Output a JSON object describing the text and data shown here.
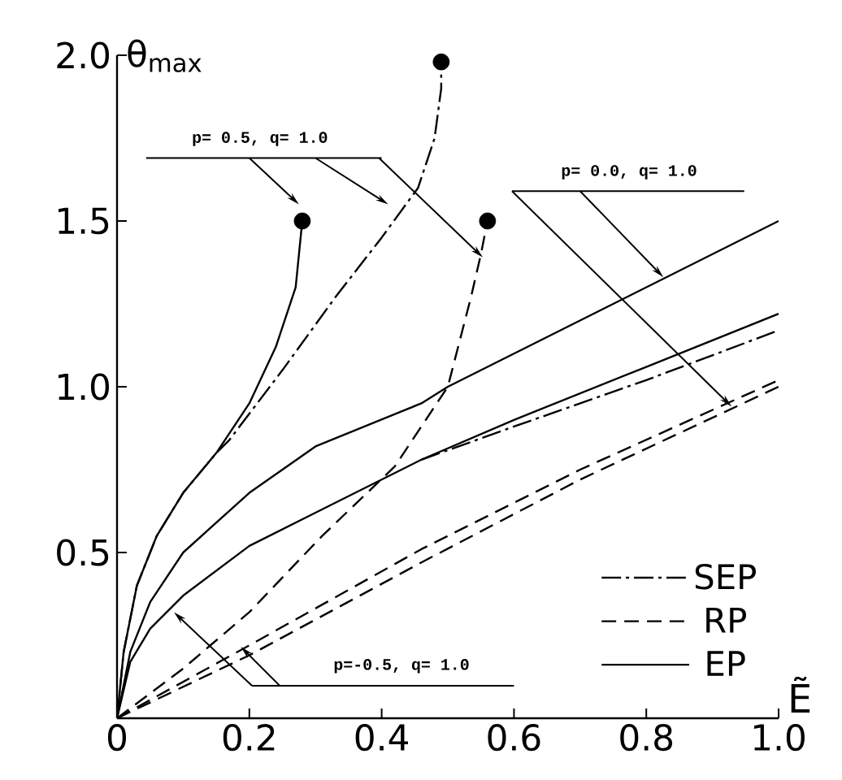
{
  "chart_data": {
    "type": "line",
    "xlabel": "Ẽ",
    "ylabel": "θ$_{max}$",
    "xlim": [
      0,
      1
    ],
    "ylim": [
      0,
      2
    ],
    "xticks": [
      {
        "value": 0,
        "label": "0"
      },
      0.2,
      0.4,
      0.6,
      0.8,
      {
        "value": 1,
        "label": "1.0"
      }
    ],
    "yticks": [
      0.5,
      {
        "value": 1,
        "label": "1.0"
      },
      1.5,
      {
        "value": 2,
        "label": "2.0"
      }
    ],
    "legend": "bottom right",
    "grid": false,
    "annotations": [
      "p= 0.5, q= 1.0",
      "p= 0.0, q= 1.0",
      "p=-0.5, q= 1.0"
    ],
    "series": [
      {
        "name": "SEP",
        "color": "#000000",
        "line_style": "dashdot",
        "x": [
          0,
          0.01,
          0.03,
          0.06,
          0.1,
          0.15,
          0.17,
          0.25,
          0.33,
          0.4,
          0.455,
          0.48,
          0.49,
          0.49
        ],
        "values": [
          0,
          0.2,
          0.4,
          0.55,
          0.68,
          0.8,
          0.84,
          1.05,
          1.27,
          1.45,
          1.6,
          1.75,
          1.9,
          1.98
        ]
      },
      {
        "name": "RP",
        "color": "#000000",
        "line_style": "dashed",
        "x": [
          0,
          0.1,
          0.2,
          0.31,
          0.42,
          0.5,
          0.535,
          0.55,
          0.56
        ],
        "values": [
          0,
          0.15,
          0.32,
          0.55,
          0.76,
          1.0,
          1.27,
          1.4,
          1.5
        ]
      },
      {
        "name": "EP",
        "color": "#000000",
        "line_style": "solid",
        "x": [
          0,
          0.01,
          0.03,
          0.06,
          0.1,
          0.15,
          0.2,
          0.24,
          0.27,
          0.28
        ],
        "values": [
          0,
          0.2,
          0.4,
          0.55,
          0.68,
          0.8,
          0.95,
          1.12,
          1.3,
          1.5
        ]
      },
      {
        "color": "#000000",
        "line_style": "solid",
        "x": [
          0,
          0.02,
          0.05,
          0.1,
          0.2,
          0.3,
          0.46,
          0.5,
          0.75,
          1.0
        ],
        "values": [
          0,
          0.2,
          0.35,
          0.5,
          0.68,
          0.82,
          0.95,
          1.0,
          1.25,
          1.5
        ]
      },
      {
        "color": "#000000",
        "line_style": "solid",
        "x": [
          0,
          0.02,
          0.05,
          0.1,
          0.2,
          0.3,
          0.46,
          0.6,
          0.8,
          1.0
        ],
        "values": [
          0,
          0.17,
          0.27,
          0.37,
          0.52,
          0.62,
          0.78,
          0.9,
          1.06,
          1.22
        ]
      },
      {
        "color": "#000000",
        "line_style": "dashdot",
        "x": [
          0.46,
          0.6,
          0.8,
          1.0
        ],
        "values": [
          0.78,
          0.88,
          1.02,
          1.17
        ]
      },
      {
        "color": "#000000",
        "line_style": "dashed",
        "x": [
          0,
          0.2,
          0.46,
          0.7,
          1.0
        ],
        "values": [
          0,
          0.22,
          0.51,
          0.75,
          1.02
        ]
      },
      {
        "color": "#000000",
        "line_style": "dashed",
        "x": [
          0,
          0.2,
          0.46,
          0.7,
          1.0
        ],
        "values": [
          0,
          0.19,
          0.47,
          0.72,
          1.0
        ]
      },
      {
        "type": "scatter",
        "marker": "circle",
        "color": "#000000",
        "x": [
          0.28,
          0.49,
          0.56
        ],
        "values": [
          1.5,
          1.98,
          1.5
        ]
      }
    ]
  }
}
